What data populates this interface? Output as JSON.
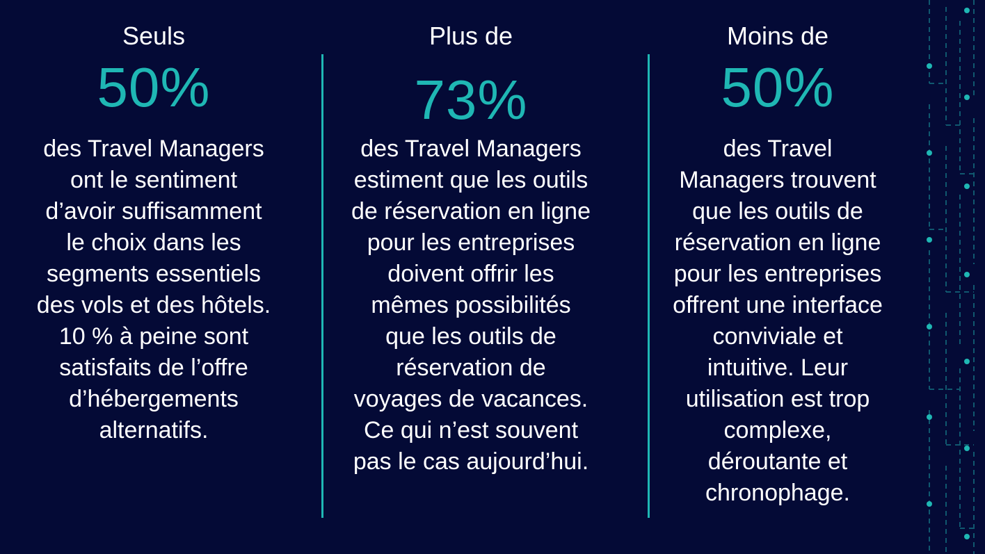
{
  "accent_color": "#1fb7b4",
  "background_color": "#040a36",
  "columns": [
    {
      "lead": "Seuls",
      "stat": "50%",
      "lines": [
        "des Travel Managers",
        "ont le sentiment",
        "d’avoir suffisamment",
        "le choix dans les",
        "segments essentiels",
        "des vols et des hôtels.",
        "10 % à peine sont",
        "satisfaits de l’offre",
        "d’hébergements",
        "alternatifs."
      ]
    },
    {
      "lead": "Plus de",
      "stat": "73%",
      "lines": [
        "des Travel Managers",
        "estiment que les outils",
        "de réservation en ligne",
        "pour les entreprises",
        "doivent offrir les",
        "mêmes possibilités",
        "que les outils de",
        "réservation de",
        "voyages de vacances.",
        "Ce qui n’est souvent",
        "pas le cas aujourd’hui."
      ]
    },
    {
      "lead": "Moins de",
      "stat": "50%",
      "lines": [
        "des Travel",
        "Managers trouvent",
        "que les outils de",
        "réservation en ligne",
        "pour les entreprises",
        "offrent une interface",
        "conviviale et",
        "intuitive. Leur",
        "utilisation est trop",
        "complexe,",
        "déroutante et",
        "chronophage."
      ]
    }
  ]
}
